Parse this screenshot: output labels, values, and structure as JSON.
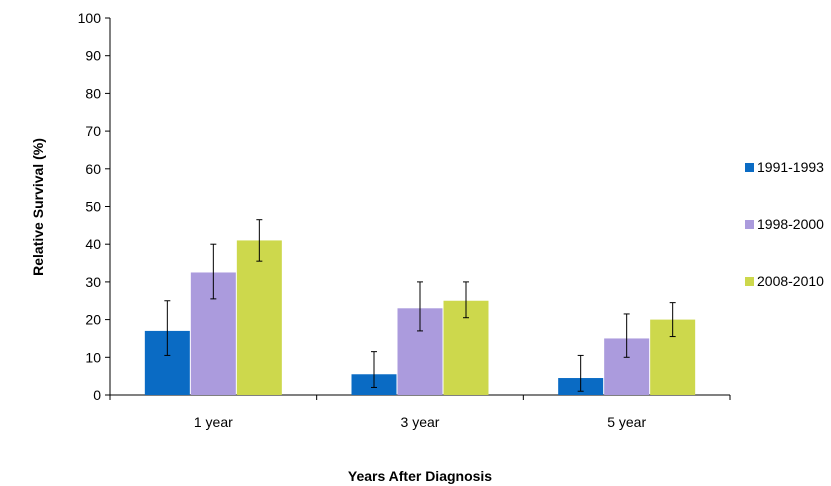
{
  "chart_data": {
    "type": "bar",
    "title": "",
    "xlabel": "Years After Diagnosis",
    "ylabel": "Relative Survival (%)",
    "ylim": [
      0,
      100
    ],
    "yticks": [
      "0",
      "10",
      "20",
      "30",
      "40",
      "50",
      "60",
      "70",
      "80",
      "90",
      "100"
    ],
    "categories": [
      "1 year",
      "3 year",
      "5 year"
    ],
    "series": [
      {
        "name": "1991-1993",
        "color": "#0a6bc4",
        "values": [
          17,
          5.5,
          4.5
        ],
        "error_low": [
          10.5,
          2,
          1
        ],
        "error_high": [
          25,
          11.5,
          10.5
        ]
      },
      {
        "name": "1998-2000",
        "color": "#ab9bdd",
        "values": [
          32.5,
          23,
          15
        ],
        "error_low": [
          25.5,
          17,
          10
        ],
        "error_high": [
          40,
          30,
          21.5
        ]
      },
      {
        "name": "2008-2010",
        "color": "#cdd84c",
        "values": [
          41,
          25,
          20
        ],
        "error_low": [
          35.5,
          20.5,
          15.5
        ],
        "error_high": [
          46.5,
          30,
          24.5
        ]
      }
    ],
    "legend_position": "right",
    "grid": false
  }
}
